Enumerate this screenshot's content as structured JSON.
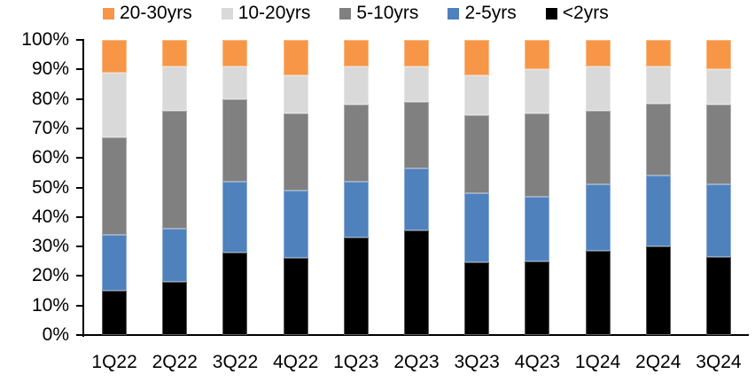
{
  "chart_data": {
    "type": "bar",
    "stacked": true,
    "percent_stacked": true,
    "title": "",
    "xlabel": "",
    "ylabel": "",
    "grid": false,
    "legend_position": "top",
    "legend_order": [
      "20-30yrs",
      "10-20yrs",
      "5-10yrs",
      "2-5yrs",
      "<2yrs"
    ],
    "categories": [
      "1Q22",
      "2Q22",
      "3Q22",
      "4Q22",
      "1Q23",
      "2Q23",
      "3Q23",
      "4Q23",
      "1Q24",
      "2Q24",
      "3Q24"
    ],
    "series": [
      {
        "name": "<2yrs",
        "color": "#000000",
        "values": [
          15,
          18,
          28,
          26,
          33,
          35.5,
          24.5,
          25,
          28.5,
          30,
          26.5
        ]
      },
      {
        "name": "2-5yrs",
        "color": "#4F81BD",
        "values": [
          19,
          18,
          24,
          23,
          19,
          21,
          23.5,
          22,
          22.5,
          24,
          24.5
        ]
      },
      {
        "name": "5-10yrs",
        "color": "#808080",
        "values": [
          33,
          40,
          28,
          26,
          26,
          22.5,
          26.5,
          28,
          25,
          24.5,
          27
        ]
      },
      {
        "name": "10-20yrs",
        "color": "#D9D9D9",
        "values": [
          22,
          15,
          11,
          13,
          13,
          12,
          13.5,
          15,
          15,
          12.5,
          12
        ]
      },
      {
        "name": "20-30yrs",
        "color": "#F79646",
        "values": [
          11,
          9,
          9,
          12,
          9,
          9,
          12,
          10,
          9,
          9,
          10
        ]
      }
    ],
    "y_axis": {
      "min": 0,
      "max": 100,
      "tick_step": 10,
      "tick_labels": [
        "0%",
        "10%",
        "20%",
        "30%",
        "40%",
        "50%",
        "60%",
        "70%",
        "80%",
        "90%",
        "100%"
      ]
    }
  }
}
